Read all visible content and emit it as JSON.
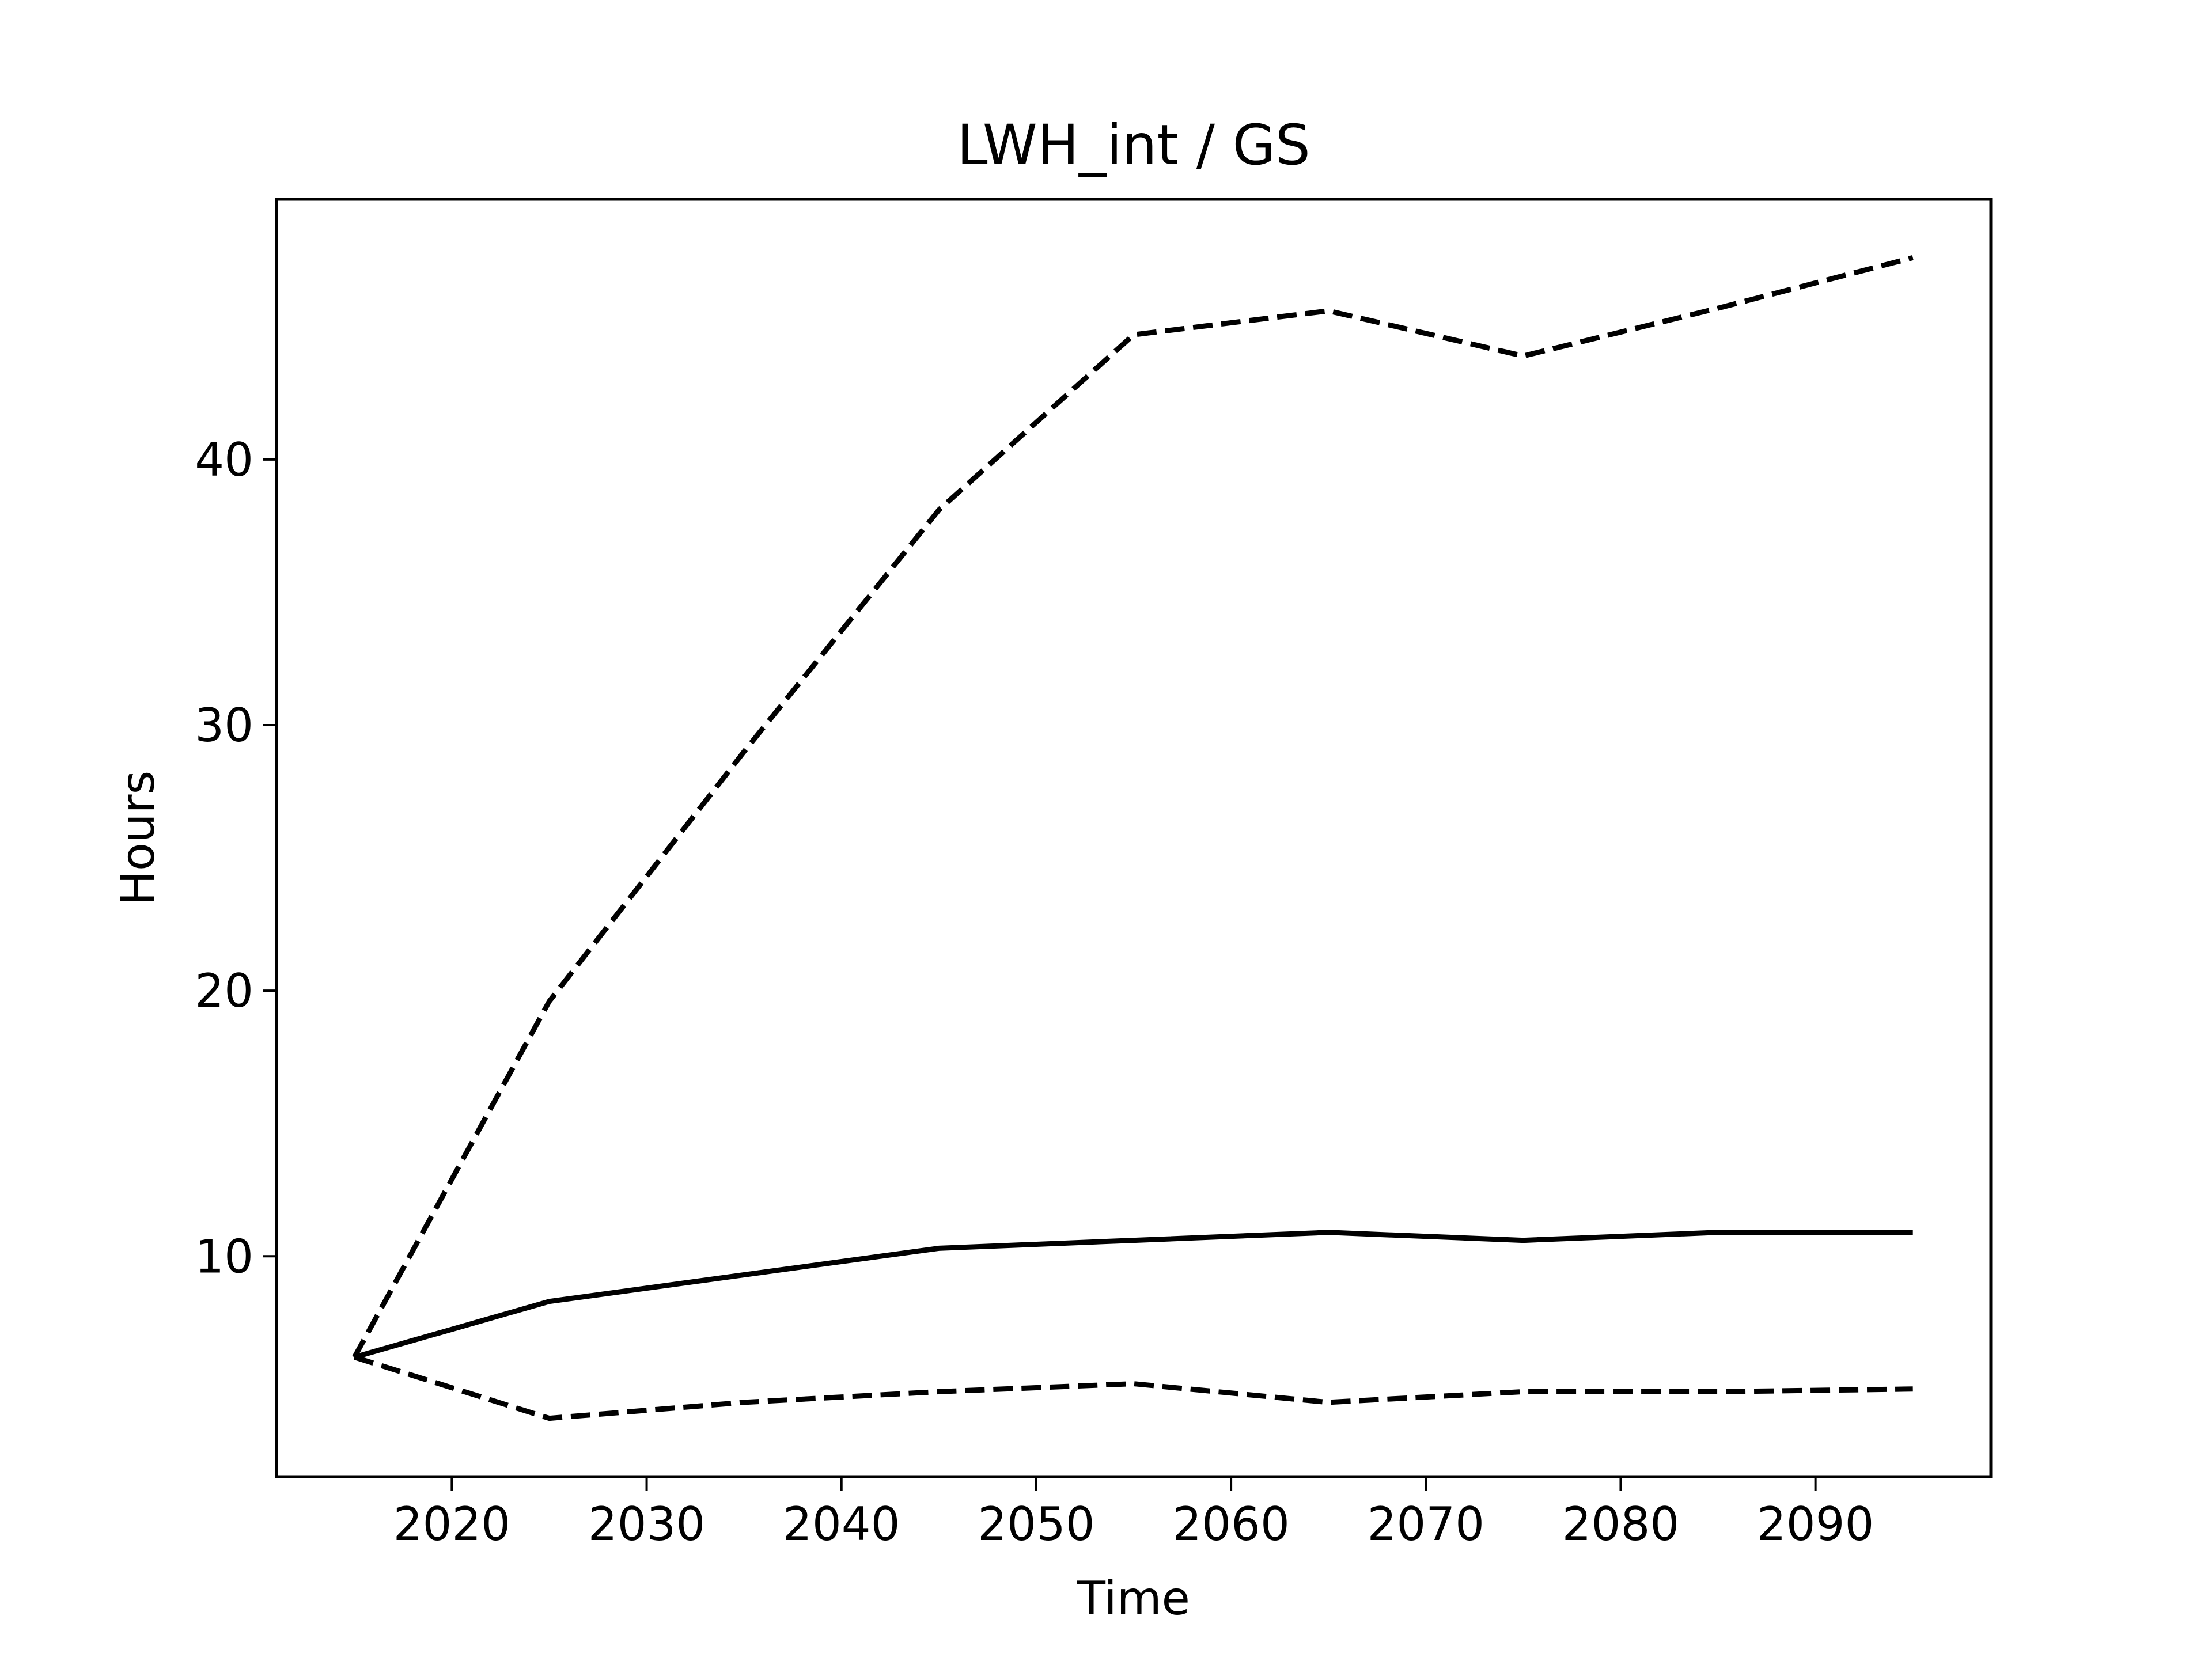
{
  "chart_data": {
    "type": "line",
    "title": "LWH_int / GS",
    "xlabel": "Time",
    "ylabel": "Hours",
    "xlim": [
      2011,
      2099
    ],
    "ylim": [
      1.7,
      49.8
    ],
    "xticks": [
      2020,
      2030,
      2040,
      2050,
      2060,
      2070,
      2080,
      2090
    ],
    "yticks": [
      10,
      20,
      30,
      40
    ],
    "grid": false,
    "x": [
      2015,
      2025,
      2035,
      2045,
      2055,
      2065,
      2075,
      2085,
      2095
    ],
    "series": [
      {
        "style": "solid",
        "color": "#000000",
        "values": [
          6.2,
          8.3,
          9.3,
          10.3,
          10.6,
          10.9,
          10.6,
          10.9,
          10.9
        ]
      },
      {
        "style": "dashed",
        "color": "#000000",
        "values": [
          6.2,
          19.6,
          29.0,
          38.1,
          44.7,
          45.6,
          43.9,
          45.7,
          47.6
        ]
      },
      {
        "style": "dashed",
        "color": "#000000",
        "values": [
          6.2,
          3.9,
          4.5,
          4.9,
          5.2,
          4.5,
          4.9,
          4.9,
          5.0
        ]
      }
    ]
  }
}
